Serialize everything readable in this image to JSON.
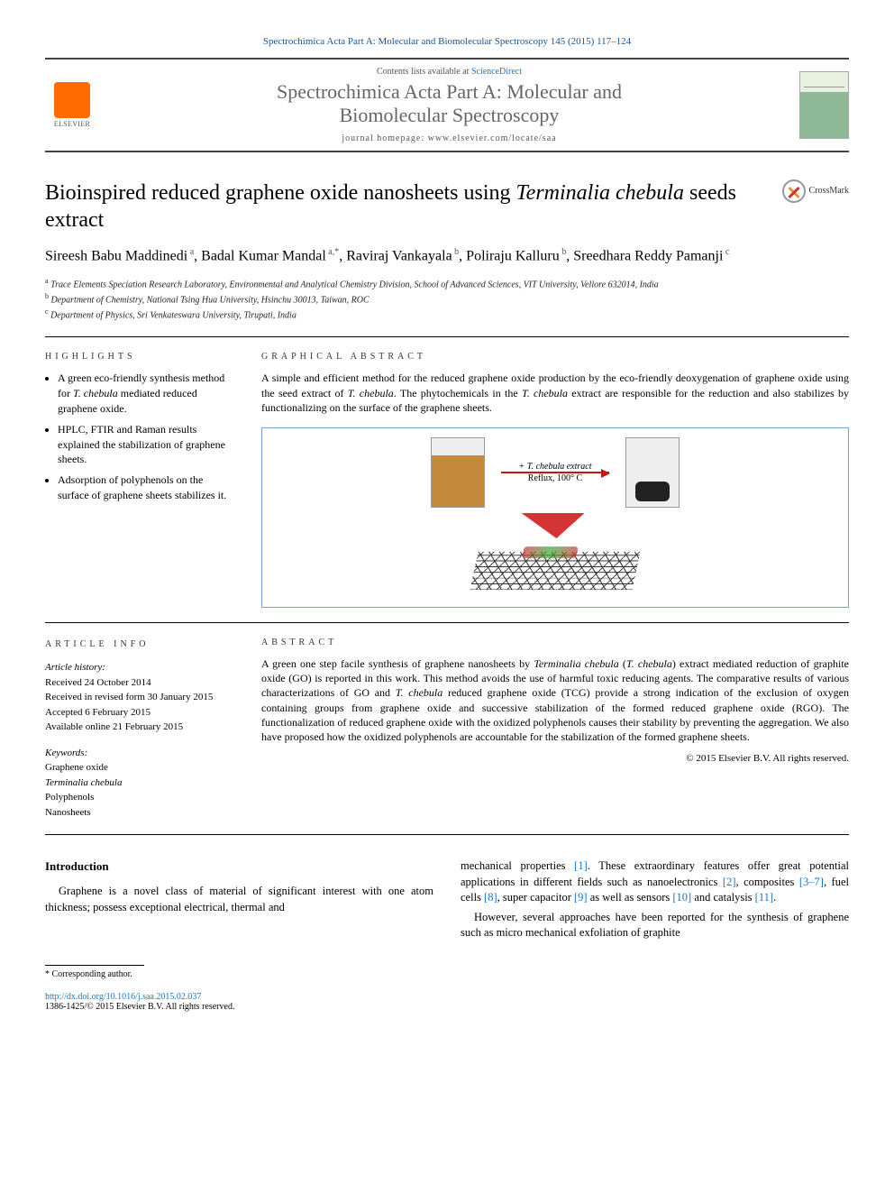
{
  "citation": "Spectrochimica Acta Part A: Molecular and Biomolecular Spectroscopy 145 (2015) 117–124",
  "header": {
    "contents_prefix": "Contents lists available at ",
    "contents_link": "ScienceDirect",
    "journal_line1": "Spectrochimica Acta Part A: Molecular and",
    "journal_line2": "Biomolecular Spectroscopy",
    "homepage": "journal homepage: www.elsevier.com/locate/saa",
    "publisher": "ELSEVIER",
    "cover_label": "SPECTROCHIMICA ACTA"
  },
  "title": {
    "part1": "Bioinspired reduced graphene oxide nanosheets using ",
    "italic": "Terminalia chebula",
    "part2": " seeds extract"
  },
  "crossmark": "CrossMark",
  "authors_html": "Sireesh Babu Maddinedi<sup> a</sup>, Badal Kumar Mandal<sup> a,*</sup>, Raviraj Vankayala<sup> b</sup>, Poliraju Kalluru<sup> b</sup>, Sreedhara Reddy Pamanji<sup> c</sup>",
  "affiliations": [
    "Trace Elements Speciation Research Laboratory, Environmental and Analytical Chemistry Division, School of Advanced Sciences, VIT University, Vellore 632014, India",
    "Department of Chemistry, National Tsing Hua University, Hsinchu 30013, Taiwan, ROC",
    "Department of Physics, Sri Venkateswara University, Tirupati, India"
  ],
  "aff_sup": [
    "a",
    "b",
    "c"
  ],
  "highlights": {
    "label": "HIGHLIGHTS",
    "items": [
      "A green eco-friendly synthesis method for <span class=\"italic\">T. chebula</span> mediated reduced graphene oxide.",
      "HPLC, FTIR and Raman results explained the stabilization of graphene sheets.",
      "Adsorption of polyphenols on the surface of graphene sheets stabilizes it."
    ]
  },
  "graphical_abstract": {
    "label": "GRAPHICAL ABSTRACT",
    "text": "A simple and efficient method for the reduced graphene oxide production by the eco-friendly deoxygenation of graphene oxide using the seed extract of <span class=\"italic\">T. chebula</span>. The phytochemicals in the <span class=\"italic\">T. chebula</span> extract are responsible for the reduction and also stabilizes by functionalizing on the surface of the graphene sheets.",
    "arrow_top": "+ T. chebula extract",
    "arrow_bottom": "Reflux, 100° C",
    "border_color": "#7aa3d4",
    "arrow_color": "#c11"
  },
  "article_info": {
    "label": "ARTICLE INFO",
    "history_label": "Article history:",
    "history": [
      "Received 24 October 2014",
      "Received in revised form 30 January 2015",
      "Accepted 6 February 2015",
      "Available online 21 February 2015"
    ],
    "keywords_label": "Keywords:",
    "keywords": [
      "Graphene oxide",
      "Terminalia chebula",
      "Polyphenols",
      "Nanosheets"
    ],
    "keywords_italic": [
      false,
      true,
      false,
      false
    ]
  },
  "abstract": {
    "label": "ABSTRACT",
    "text": "A green one step facile synthesis of graphene nanosheets by <span class=\"italic\">Terminalia chebula</span> (<span class=\"italic\">T. chebula</span>) extract mediated reduction of graphite oxide (GO) is reported in this work. This method avoids the use of harmful toxic reducing agents. The comparative results of various characterizations of GO and <span class=\"italic\">T. chebula</span> reduced graphene oxide (TCG) provide a strong indication of the exclusion of oxygen containing groups from graphene oxide and successive stabilization of the formed reduced graphene oxide (RGO). The functionalization of reduced graphene oxide with the oxidized polyphenols causes their stability by preventing the aggregation. We also have proposed how the oxidized polyphenols are accountable for the stabilization of the formed graphene sheets.",
    "copyright": "© 2015 Elsevier B.V. All rights reserved."
  },
  "body": {
    "intro_heading": "Introduction",
    "left": "Graphene is a novel class of material of significant interest with one atom thickness; possess exceptional electrical, thermal and",
    "right_p1": "mechanical properties <span class=\"ref-link\">[1]</span>. These extraordinary features offer great potential applications in different fields such as nanoelectronics <span class=\"ref-link\">[2]</span>, composites <span class=\"ref-link\">[3–7]</span>, fuel cells <span class=\"ref-link\">[8]</span>, super capacitor <span class=\"ref-link\">[9]</span> as well as sensors <span class=\"ref-link\">[10]</span> and catalysis <span class=\"ref-link\">[11]</span>.",
    "right_p2": "However, several approaches have been reported for the synthesis of graphene such as micro mechanical exfoliation of graphite"
  },
  "footer": {
    "corr": "* Corresponding author.",
    "doi": "http://dx.doi.org/10.1016/j.saa.2015.02.037",
    "issn": "1386-1425/© 2015 Elsevier B.V. All rights reserved."
  },
  "colors": {
    "link": "#1a75c4",
    "text": "#000000",
    "rule": "#000000"
  }
}
